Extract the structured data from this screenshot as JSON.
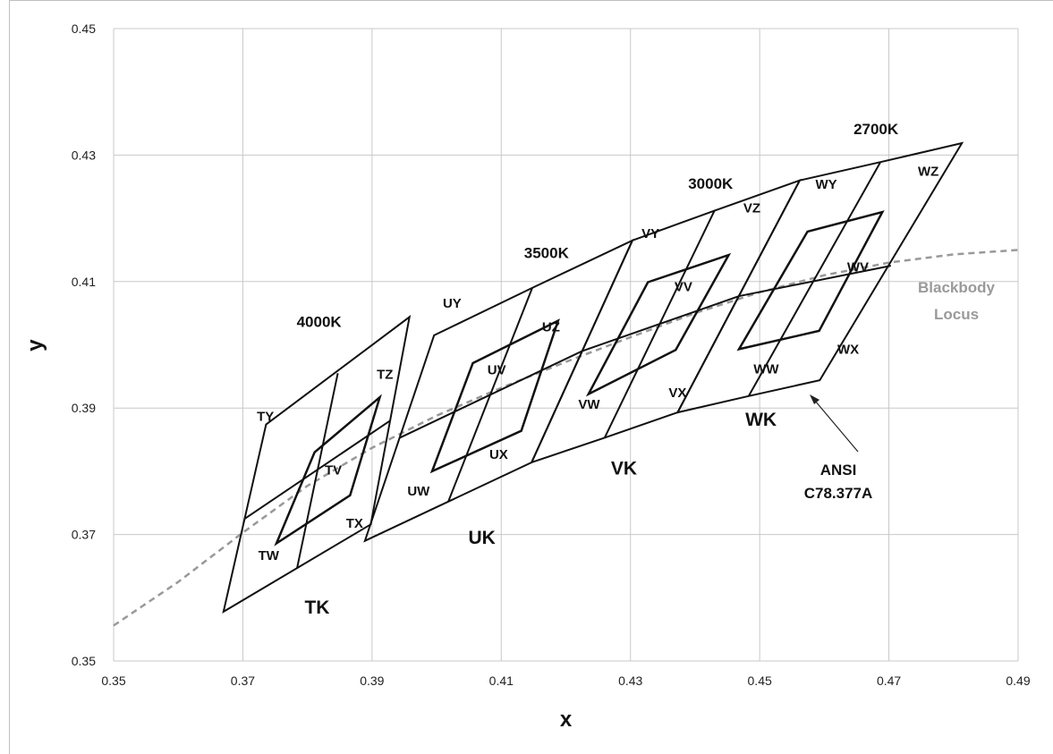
{
  "chart_data": {
    "type": "scatter",
    "title": "",
    "xlabel": "x",
    "ylabel": "y",
    "xlim": [
      0.35,
      0.49
    ],
    "ylim": [
      0.35,
      0.45
    ],
    "xticks": [
      "0.35",
      "0.37",
      "0.39",
      "0.41",
      "0.43",
      "0.45",
      "0.47",
      "0.49"
    ],
    "yticks": [
      "0.35",
      "0.37",
      "0.39",
      "0.41",
      "0.43",
      "0.45"
    ],
    "grid": true,
    "legend": "none",
    "colors": {
      "outline": "#111111",
      "grid": "#c8c8c8",
      "locus": "#999999"
    },
    "blackbody_locus": {
      "label": "Blackbody Locus",
      "x": [
        0.35,
        0.36,
        0.37,
        0.38,
        0.39,
        0.4,
        0.41,
        0.42,
        0.43,
        0.44,
        0.45,
        0.46,
        0.47,
        0.48,
        0.49
      ],
      "y": [
        0.3556,
        0.3625,
        0.3703,
        0.3777,
        0.3837,
        0.3888,
        0.3932,
        0.3973,
        0.4012,
        0.405,
        0.4083,
        0.411,
        0.413,
        0.4143,
        0.415
      ]
    },
    "ansi_quadrangles": [
      {
        "cct": "4000K",
        "points": [
          [
            0.3736,
            0.3874
          ],
          [
            0.3958,
            0.4044
          ],
          [
            0.3898,
            0.3716
          ],
          [
            0.367,
            0.3578
          ]
        ]
      },
      {
        "cct": "3500K",
        "points": [
          [
            0.3996,
            0.4015
          ],
          [
            0.4148,
            0.409
          ],
          [
            0.4303,
            0.4165
          ],
          [
            0.4147,
            0.3814
          ],
          [
            0.4018,
            0.3752
          ],
          [
            0.3889,
            0.369
          ]
        ]
      },
      {
        "cct": "3000K",
        "points": [
          [
            0.4303,
            0.4165
          ],
          [
            0.443,
            0.4212
          ],
          [
            0.4562,
            0.426
          ],
          [
            0.4373,
            0.3893
          ],
          [
            0.426,
            0.3853
          ],
          [
            0.4147,
            0.3814
          ]
        ]
      },
      {
        "cct": "2700K",
        "points": [
          [
            0.4562,
            0.426
          ],
          [
            0.4687,
            0.4289
          ],
          [
            0.4813,
            0.4319
          ],
          [
            0.4593,
            0.3944
          ],
          [
            0.4483,
            0.3919
          ],
          [
            0.4373,
            0.3893
          ]
        ]
      }
    ],
    "subdivision_lines": [
      [
        [
          0.3847,
          0.3955
        ],
        [
          0.3784,
          0.3647
        ]
      ],
      [
        [
          0.3703,
          0.3725
        ],
        [
          0.3928,
          0.388
        ]
      ],
      [
        [
          0.4148,
          0.409
        ],
        [
          0.4018,
          0.3752
        ]
      ],
      [
        [
          0.3943,
          0.3853
        ],
        [
          0.4225,
          0.399
        ]
      ],
      [
        [
          0.443,
          0.4212
        ],
        [
          0.426,
          0.3853
        ]
      ],
      [
        [
          0.4225,
          0.399
        ],
        [
          0.4468,
          0.4077
        ]
      ],
      [
        [
          0.4687,
          0.4289
        ],
        [
          0.4483,
          0.3919
        ]
      ],
      [
        [
          0.4468,
          0.4077
        ],
        [
          0.4703,
          0.4125
        ]
      ]
    ],
    "center_quadrangles": [
      {
        "name": "TV",
        "points": [
          [
            0.3811,
            0.383
          ],
          [
            0.3912,
            0.3917
          ],
          [
            0.3866,
            0.3762
          ],
          [
            0.3752,
            0.3686
          ]
        ]
      },
      {
        "name": "UV",
        "points": [
          [
            0.4056,
            0.3971
          ],
          [
            0.4188,
            0.4038
          ],
          [
            0.4131,
            0.3864
          ],
          [
            0.3993,
            0.38
          ]
        ]
      },
      {
        "name": "VV",
        "points": [
          [
            0.4327,
            0.4099
          ],
          [
            0.4452,
            0.4142
          ],
          [
            0.437,
            0.3992
          ],
          [
            0.4235,
            0.3922
          ]
        ]
      },
      {
        "name": "WV",
        "points": [
          [
            0.4574,
            0.4179
          ],
          [
            0.469,
            0.421
          ],
          [
            0.4592,
            0.4022
          ],
          [
            0.4468,
            0.3993
          ]
        ]
      }
    ],
    "zone_labels": [
      {
        "text": "TY",
        "x": 0.3735,
        "y": 0.388
      },
      {
        "text": "TZ",
        "x": 0.392,
        "y": 0.3946
      },
      {
        "text": "TV",
        "x": 0.384,
        "y": 0.3795
      },
      {
        "text": "TW",
        "x": 0.374,
        "y": 0.366
      },
      {
        "text": "TX",
        "x": 0.3873,
        "y": 0.3711
      },
      {
        "text": "UY",
        "x": 0.4024,
        "y": 0.4059
      },
      {
        "text": "UZ",
        "x": 0.4177,
        "y": 0.4021
      },
      {
        "text": "UV",
        "x": 0.4093,
        "y": 0.3953
      },
      {
        "text": "UW",
        "x": 0.3972,
        "y": 0.3762
      },
      {
        "text": "UX",
        "x": 0.4096,
        "y": 0.382
      },
      {
        "text": "VY",
        "x": 0.4331,
        "y": 0.4169
      },
      {
        "text": "VZ",
        "x": 0.4488,
        "y": 0.4209
      },
      {
        "text": "VV",
        "x": 0.4382,
        "y": 0.4085
      },
      {
        "text": "VW",
        "x": 0.4236,
        "y": 0.3899
      },
      {
        "text": "VX",
        "x": 0.4373,
        "y": 0.3917
      },
      {
        "text": "WY",
        "x": 0.4603,
        "y": 0.4247
      },
      {
        "text": "WZ",
        "x": 0.4761,
        "y": 0.4267
      },
      {
        "text": "WV",
        "x": 0.4652,
        "y": 0.4116
      },
      {
        "text": "WW",
        "x": 0.451,
        "y": 0.3955
      },
      {
        "text": "WX",
        "x": 0.4637,
        "y": 0.3986
      }
    ],
    "group_labels": [
      {
        "text": "TK",
        "x": 0.3815,
        "y": 0.3575
      },
      {
        "text": "UK",
        "x": 0.407,
        "y": 0.3685
      },
      {
        "text": "VK",
        "x": 0.429,
        "y": 0.3795
      },
      {
        "text": "WK",
        "x": 0.4502,
        "y": 0.3872
      }
    ],
    "cct_labels": [
      {
        "text": "4000K",
        "x": 0.3818,
        "y": 0.4028
      },
      {
        "text": "3500K",
        "x": 0.417,
        "y": 0.4137
      },
      {
        "text": "3000K",
        "x": 0.4424,
        "y": 0.4247
      },
      {
        "text": "2700K",
        "x": 0.468,
        "y": 0.4333
      }
    ],
    "annotations": {
      "locus_line1": "Blackbody",
      "locus_line2": "Locus",
      "ansi_line1": "ANSI",
      "ansi_line2": "C78.377A"
    }
  }
}
